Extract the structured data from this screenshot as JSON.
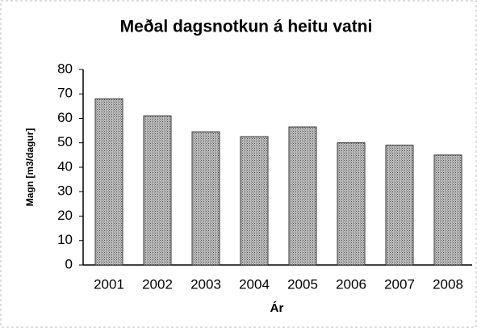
{
  "chart_data": {
    "type": "bar",
    "title": "Meðal dagsnotkun á heitu vatni",
    "x_label": "Ár",
    "y_label": "Magn [m3/dagur]",
    "categories": [
      "2001",
      "2002",
      "2003",
      "2004",
      "2005",
      "2006",
      "2007",
      "2008"
    ],
    "values": [
      68,
      61,
      54.5,
      52.5,
      56.5,
      50,
      49,
      45
    ],
    "color": "#9a9a9a",
    "ylim": [
      0,
      80
    ],
    "yticks": [
      0,
      10,
      20,
      30,
      40,
      50,
      60,
      70,
      80
    ],
    "grid": false
  }
}
